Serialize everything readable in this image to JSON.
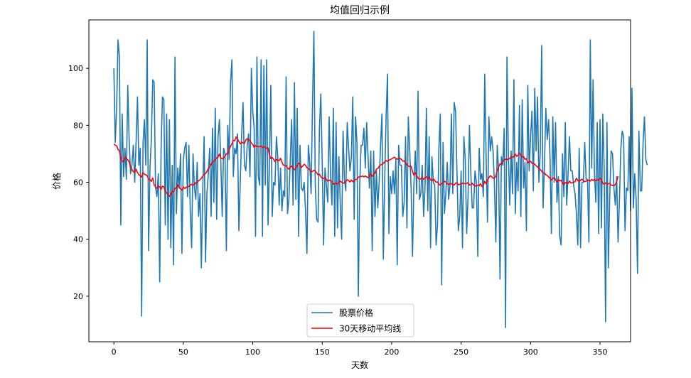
{
  "chart_data": {
    "type": "line",
    "title": "均值回归示例",
    "xlabel": "天数",
    "ylabel": "价格",
    "xlim": [
      -18,
      372
    ],
    "ylim": [
      4,
      117
    ],
    "xticks": [
      0,
      50,
      100,
      150,
      200,
      250,
      300,
      350
    ],
    "yticks": [
      20,
      40,
      60,
      80,
      100
    ],
    "grid": false,
    "legend_position": "bottom-center",
    "series": [
      {
        "name": "股票价格",
        "color": "#1f77b4",
        "x_start": 0,
        "x_step": 1,
        "values": [
          100,
          74,
          86,
          110,
          104,
          45,
          84,
          62,
          72,
          61,
          94,
          75,
          63,
          66,
          73,
          60,
          74,
          90,
          66,
          72,
          13,
          74,
          82,
          66,
          110,
          36,
          65,
          75,
          96,
          95,
          58,
          55,
          63,
          25,
          72,
          90,
          89,
          45,
          84,
          40,
          82,
          37,
          66,
          31,
          104,
          49,
          65,
          58,
          70,
          35,
          68,
          72,
          74,
          55,
          73,
          50,
          37,
          70,
          58,
          54,
          67,
          48,
          56,
          30,
          58,
          76,
          32,
          56,
          63,
          72,
          48,
          79,
          53,
          86,
          47,
          76,
          82,
          67,
          48,
          72,
          70,
          36,
          80,
          68,
          95,
          103,
          62,
          72,
          70,
          77,
          43,
          60,
          77,
          88,
          66,
          64,
          73,
          77,
          62,
          100,
          85,
          79,
          41,
          104,
          62,
          59,
          103,
          41,
          101,
          59,
          103,
          45,
          66,
          94,
          48,
          60,
          59,
          76,
          69,
          52,
          65,
          50,
          57,
          55,
          97,
          49,
          54,
          68,
          82,
          52,
          95,
          54,
          86,
          41,
          73,
          58,
          57,
          60,
          50,
          35,
          73,
          67,
          56,
          87,
          113,
          59,
          47,
          46,
          79,
          91,
          67,
          38,
          65,
          59,
          53,
          83,
          62,
          52,
          86,
          41,
          81,
          44,
          69,
          52,
          40,
          78,
          61,
          57,
          81,
          72,
          64,
          69,
          90,
          47,
          83,
          74,
          20,
          59,
          73,
          73,
          79,
          65,
          81,
          69,
          58,
          71,
          36,
          71,
          48,
          64,
          51,
          60,
          73,
          84,
          33,
          61,
          83,
          98,
          42,
          62,
          56,
          64,
          56,
          68,
          31,
          73,
          66,
          66,
          48,
          53,
          76,
          44,
          83,
          71,
          58,
          34,
          59,
          71,
          56,
          92,
          54,
          56,
          66,
          48,
          58,
          86,
          50,
          76,
          37,
          69,
          60,
          59,
          38,
          45,
          72,
          84,
          24,
          74,
          49,
          56,
          67,
          54,
          59,
          84,
          56,
          88,
          85,
          64,
          43,
          48,
          64,
          37,
          76,
          68,
          42,
          55,
          80,
          63,
          51,
          51,
          64,
          60,
          34,
          72,
          61,
          63,
          55,
          98,
          69,
          46,
          83,
          71,
          76,
          71,
          59,
          39,
          73,
          64,
          26,
          69,
          66,
          79,
          9,
          104,
          70,
          52,
          71,
          56,
          96,
          49,
          67,
          57,
          87,
          48,
          89,
          58,
          67,
          43,
          94,
          64,
          76,
          85,
          57,
          93,
          71,
          90,
          60,
          71,
          108,
          51,
          66,
          86,
          75,
          82,
          69,
          42,
          83,
          60,
          81,
          53,
          62,
          41,
          38,
          70,
          55,
          81,
          52,
          63,
          76,
          64,
          64,
          59,
          56,
          49,
          38,
          72,
          37,
          60,
          60,
          74,
          61,
          61,
          39,
          110,
          65,
          96,
          63,
          53,
          81,
          42,
          82,
          44,
          84,
          65,
          11,
          81,
          30,
          55,
          71,
          70,
          58,
          52,
          62,
          39,
          54,
          72,
          78,
          76,
          43,
          58,
          57,
          76,
          50,
          93,
          51,
          63,
          54,
          28,
          78,
          57,
          57,
          74,
          83,
          68,
          66
        ]
      },
      {
        "name": "30天移动平均线",
        "color": "#ff0000",
        "x_start": 0,
        "x_step": 1,
        "values": [
          73.5,
          73.0,
          72.8,
          71.5,
          71.0,
          68.5,
          67.2,
          67.5,
          68.8,
          68.3,
          67.9,
          67.2,
          65.2,
          64.5,
          63.7,
          63.4,
          64.6,
          63.4,
          62.6,
          62.3,
          61.8,
          63.4,
          62.8,
          62.6,
          62.3,
          61.1,
          60.9,
          60.3,
          61.5,
          59.1,
          58.3,
          57.9,
          58.6,
          58.4,
          57.5,
          58.6,
          58.4,
          56.9,
          56.3,
          55.6,
          55.1,
          55.6,
          56.8,
          56.6,
          57.9,
          58.1,
          59.1,
          58.0,
          57.7,
          57.2,
          58.4,
          57.8,
          58.2,
          58.5,
          58.5,
          59.0,
          59.3,
          59.0,
          59.3,
          59.9,
          60.0,
          60.5,
          60.9,
          61.4,
          62.1,
          62.7,
          63.1,
          63.8,
          64.8,
          65.4,
          66.3,
          67.1,
          67.4,
          67.8,
          68.5,
          68.8,
          69.9,
          68.5,
          68.2,
          68.5,
          69.1,
          70.0,
          69.9,
          71.6,
          72.6,
          73.5,
          74.8,
          74.5,
          75.9,
          75.2,
          74.3,
          73.5,
          74.1,
          73.8,
          73.6,
          74.8,
          75.3,
          75.0,
          74.7,
          73.7,
          73.3,
          72.2,
          72.9,
          72.6,
          72.5,
          72.5,
          72.7,
          72.2,
          72.5,
          72.3,
          71.9,
          72.1,
          69.5,
          68.3,
          68.7,
          68.1,
          67.2,
          68.0,
          67.7,
          67.6,
          68.4,
          67.1,
          66.0,
          66.0,
          65.8,
          65.0,
          64.6,
          65.3,
          65.7,
          64.9,
          64.4,
          65.0,
          65.8,
          66.7,
          66.5,
          65.2,
          65.7,
          66.3,
          66.0,
          65.1,
          64.8,
          64.4,
          63.6,
          63.8,
          64.2,
          63.9,
          63.3,
          62.6,
          62.8,
          62.0,
          61.4,
          61.3,
          61.6,
          61.0,
          60.4,
          60.7,
          60.6,
          60.1,
          59.3,
          59.5,
          59.6,
          59.4,
          59.9,
          60.4,
          60.0,
          59.7,
          59.8,
          60.3,
          60.9,
          60.6,
          60.1,
          60.8,
          60.2,
          60.5,
          61.0,
          61.0,
          61.7,
          62.1,
          62.0,
          62.2,
          61.9,
          62.2,
          61.9,
          61.6,
          62.3,
          62.9,
          62.1,
          62.8,
          63.2,
          64.6,
          64.8,
          65.6,
          66.1,
          66.2,
          66.6,
          67.2,
          67.6,
          67.3,
          67.7,
          68.0,
          68.2,
          68.5,
          68.8,
          68.4,
          68.1,
          68.3,
          68.4,
          68.0,
          67.4,
          67.5,
          66.9,
          66.1,
          65.7,
          65.5,
          65.6,
          63.8,
          62.4,
          63.3,
          62.3,
          61.5,
          61.0,
          61.3,
          61.6,
          61.0,
          61.6,
          61.9,
          61.2,
          61.8,
          60.9,
          60.5,
          61.2,
          60.6,
          60.0,
          60.1,
          59.3,
          59.0,
          59.5,
          60.0,
          60.3,
          60.1,
          59.4,
          59.2,
          59.5,
          59.5,
          59.1,
          59.0,
          59.7,
          59.8,
          59.1,
          59.3,
          59.3,
          59.7,
          59.6,
          59.5,
          59.6,
          59.9,
          59.0,
          59.1,
          59.7,
          59.0,
          58.8,
          58.6,
          59.0,
          58.8,
          59.5,
          58.5,
          59.0,
          60.3,
          59.5,
          60.8,
          61.6,
          62.3,
          62.0,
          61.4,
          61.5,
          62.2,
          64.1,
          65.3,
          66.5,
          66.3,
          67.2,
          67.8,
          68.1,
          67.9,
          68.3,
          68.2,
          69.1,
          68.8,
          68.9,
          69.9,
          69.1,
          69.5,
          70.2,
          69.8,
          68.9,
          69.0,
          68.0,
          68.3,
          66.8,
          67.3,
          67.4,
          66.7,
          66.5,
          66.4,
          65.8,
          65.4,
          64.9,
          64.5,
          63.9,
          63.2,
          63.3,
          62.6,
          62.4,
          61.9,
          61.3,
          60.8,
          61.3,
          61.7,
          60.9,
          60.0,
          61.0,
          60.5,
          60.7,
          59.8,
          59.1,
          59.9,
          59.9,
          59.6,
          60.4,
          59.8,
          59.8,
          60.0,
          60.2,
          61.4,
          60.6,
          60.4,
          60.7,
          61.1,
          60.6,
          60.2,
          60.4,
          60.6,
          60.7,
          60.4,
          61.0,
          60.6,
          61.0,
          60.5,
          60.9,
          60.7,
          61.4,
          61.2,
          59.6,
          59.3,
          59.8,
          59.4,
          59.5,
          59.6,
          59.0,
          58.9,
          58.7,
          59.2,
          60.4,
          62.1
        ]
      }
    ]
  }
}
